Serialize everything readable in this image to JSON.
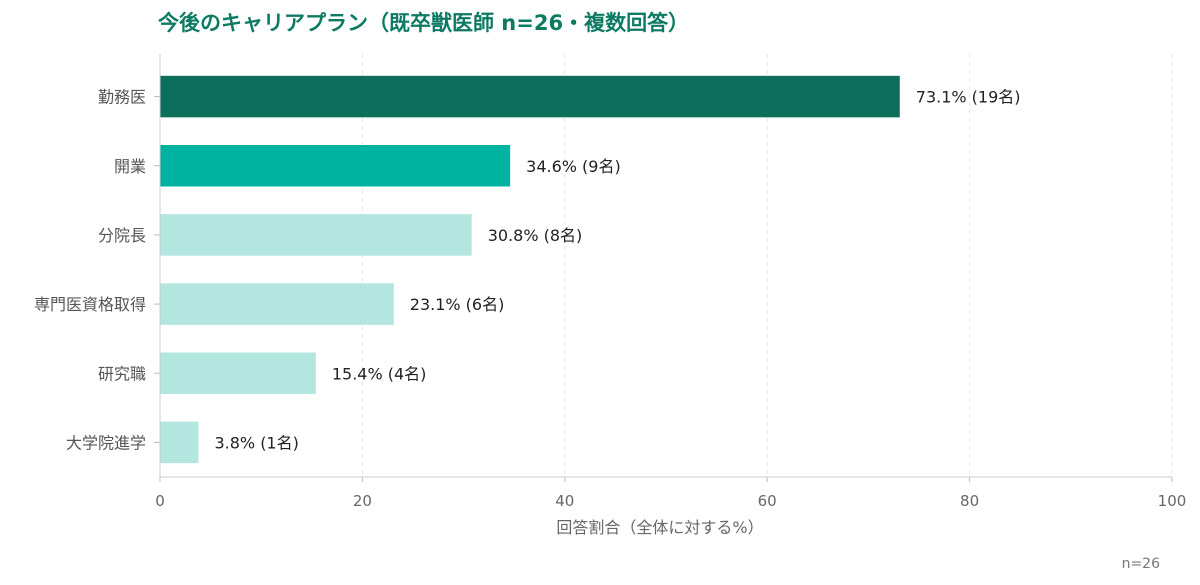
{
  "chart_data": {
    "type": "bar",
    "orientation": "horizontal",
    "title": "今後のキャリアプラン（既卒獣医師 n=26・複数回答）",
    "xlabel": "回答割合（全体に対する%）",
    "ylabel": "",
    "xlim": [
      0,
      100
    ],
    "xticks": [
      0,
      20,
      40,
      60,
      80,
      100
    ],
    "grid": true,
    "categories": [
      "勤務医",
      "開業",
      "分院長",
      "専門医資格取得",
      "研究職",
      "大学院進学"
    ],
    "values": [
      73.1,
      34.6,
      30.8,
      23.1,
      15.4,
      3.8
    ],
    "value_labels": [
      "73.1% (19名)",
      "34.6% (9名)",
      "30.8% (8名)",
      "23.1% (6名)",
      "15.4% (4名)",
      "3.8% (1名)"
    ],
    "colors": [
      "#0d6e5c",
      "#00b3a1",
      "#b3e6de",
      "#b3e6de",
      "#b3e6de",
      "#b3e6de"
    ],
    "note": "n=26"
  }
}
